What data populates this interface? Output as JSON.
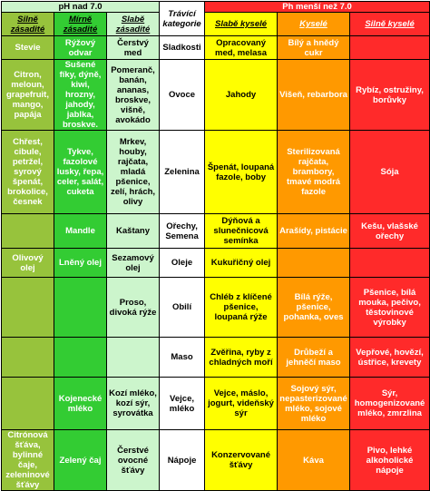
{
  "header": {
    "ph_above": "pH nad 7.0",
    "ph_below": "Ph menší než 7.0",
    "center": "Trávící kategorie",
    "columns": [
      "Silně zásadité",
      "Mírně zásadité",
      "Slabě zásadité",
      "Slabě kyselé",
      "Kyselé",
      "Silně kyselé"
    ]
  },
  "rows": [
    {
      "cells": [
        "Stevie",
        "Rýžový odvar",
        "Čerstvý med",
        "Sladkosti",
        "Opracovaný med, melasa",
        "Bílý a hnědý cukr",
        ""
      ]
    },
    {
      "cells": [
        "Citron, meloun, grapefruit, mango, papája",
        "Sušené fíky, dýně, kiwi, hrozny, jahody, jablka, broskve.",
        "Pomeranč, banán, ananas, broskve, višně, avokádo",
        "Ovoce",
        "Jahody",
        "Višeň, rebarbora",
        "Rybíz, ostružiny, borůvky"
      ]
    },
    {
      "cells": [
        "Chřest, cibule, petržel, syrový špenát, brokolice, česnek",
        "Tykve, fazolové lusky, řepa, celer, salát, cuketa",
        "Mrkev, houby, rajčata, mladá pšenice, zelí, hrách, olivy",
        "Zelenina",
        "Špenát, loupaná fazole, boby",
        "Sterilizovaná rajčata, brambory, tmavé modrá fazole",
        "Sója"
      ]
    },
    {
      "cells": [
        "",
        "Mandle",
        "Kaštany",
        "Ořechy, Semena",
        "Dýňová a slunečnicová semínka",
        "Arašídy, pistácie",
        "Kešu, vlašské ořechy"
      ]
    },
    {
      "cells": [
        "Olivový olej",
        "Lněný olej",
        "Sezamový olej",
        "Oleje",
        "Kukuřičný olej",
        "",
        ""
      ]
    },
    {
      "cells": [
        "",
        "",
        "Proso, divoká rýže",
        "Obilí",
        "Chléb z klíčené pšenice, loupaná rýže",
        "Bílá rýže, pšenice, pohanka, oves",
        "Pšenice, bílá mouka, pečivo, těstovinové výrobky"
      ]
    },
    {
      "cells": [
        "",
        "",
        "",
        "Maso",
        "Zvěřina, ryby z chladných moří",
        "Drůbeží a jehněčí maso",
        "Vepřové, hovězí, ústřice, krevety"
      ]
    },
    {
      "cells": [
        "",
        "Kojenecké mléko",
        "Kozí mléko, kozí sýr, syrovátka",
        "Vejce, mléko",
        "Vejce, máslo, jogurt, videňský sýr",
        "Sojový sýr, nepasterizované mléko, sojové mléko",
        "Sýr, homogenizované mléko, zmrzlina"
      ]
    },
    {
      "cells": [
        "Citrónová šťáva, bylinné čaje, zeleninové šťávy",
        "Zelený čaj",
        "Čerstvé ovocné šťávy",
        "Nápoje",
        "Konzervované šťávy",
        "Káva",
        "Pivo, lehké alkoholické nápoje"
      ]
    }
  ],
  "colors": {
    "col1": "#97c33c",
    "col2": "#33cc33",
    "col3": "#ccf5cc",
    "col4": "#ffffff",
    "col5": "#ffff00",
    "col6": "#ff9900",
    "col7": "#ff2a2a"
  }
}
